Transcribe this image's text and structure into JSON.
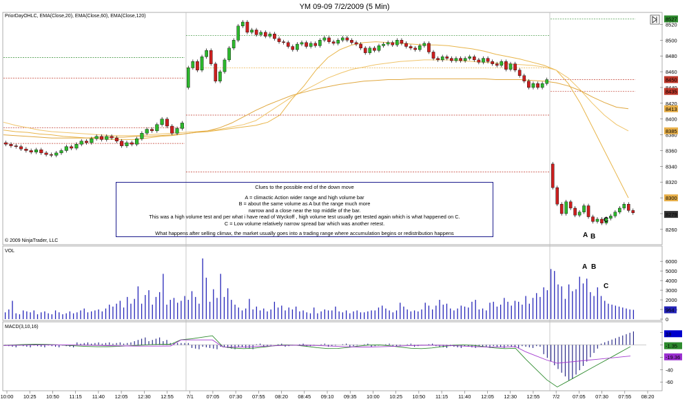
{
  "chart_data": [
    {
      "type": "candlestick",
      "title": "YM 09-09  7/2/2009 (5 Min)",
      "legend": "PriorDayOHLC, EMA(Close,20), EMA(Close,60), EMA(Close,120)",
      "copyright": "© 2009 NinjaTrader, LLC",
      "ylim": [
        8245,
        8530
      ],
      "y_ticks": [
        8260,
        8280,
        8300,
        8320,
        8340,
        8360,
        8380,
        8400,
        8420,
        8440,
        8460,
        8480,
        8500,
        8520
      ],
      "x_tick_labels": [
        "10:00",
        "10:25",
        "10:50",
        "11:15",
        "11:40",
        "12:05",
        "12:30",
        "12:55",
        "7/1",
        "07:05",
        "07:30",
        "07:55",
        "08:20",
        "08:45",
        "09:10",
        "09:35",
        "10:00",
        "10:25",
        "10:50",
        "11:15",
        "11:40",
        "12:05",
        "12:30",
        "12:55",
        "7/2",
        "07:05",
        "07:30",
        "07:55",
        "08:20"
      ],
      "price_badges": [
        {
          "label": "8527",
          "value": 8527,
          "color": "#2e8b2e"
        },
        {
          "label": "8450",
          "value": 8450,
          "color": "#c0392b"
        },
        {
          "label": "8435",
          "value": 8435,
          "color": "#c0392b"
        },
        {
          "label": "8413",
          "value": 8413,
          "color": "#e8b04a"
        },
        {
          "label": "8385",
          "value": 8385,
          "color": "#e8b04a"
        },
        {
          "label": "8300",
          "value": 8300,
          "color": "#e8b04a"
        },
        {
          "label": "8279",
          "value": 8279,
          "color": "#333333"
        }
      ],
      "annotations": [
        "A",
        "B",
        "C"
      ],
      "candles_day1": [
        [
          8370,
          8368
        ],
        [
          8368,
          8366
        ],
        [
          8366,
          8365
        ],
        [
          8365,
          8362
        ],
        [
          8362,
          8360
        ],
        [
          8360,
          8358
        ],
        [
          8358,
          8361
        ],
        [
          8361,
          8357
        ],
        [
          8357,
          8355
        ],
        [
          8355,
          8354
        ],
        [
          8354,
          8357
        ],
        [
          8357,
          8360
        ],
        [
          8360,
          8365
        ],
        [
          8365,
          8363
        ],
        [
          8363,
          8368
        ],
        [
          8368,
          8372
        ],
        [
          8372,
          8370
        ],
        [
          8370,
          8375
        ],
        [
          8375,
          8378
        ],
        [
          8378,
          8374
        ],
        [
          8374,
          8378
        ],
        [
          8378,
          8376
        ],
        [
          8376,
          8372
        ],
        [
          8372,
          8366
        ],
        [
          8366,
          8370
        ],
        [
          8370,
          8368
        ],
        [
          8368,
          8375
        ],
        [
          8375,
          8382
        ],
        [
          8382,
          8387
        ],
        [
          8387,
          8385
        ],
        [
          8385,
          8393
        ],
        [
          8393,
          8400
        ],
        [
          8400,
          8391
        ],
        [
          8391,
          8382
        ],
        [
          8382,
          8388
        ],
        [
          8388,
          8395
        ]
      ],
      "candles_day2": [
        [
          8440,
          8465
        ],
        [
          8465,
          8473
        ],
        [
          8473,
          8462
        ],
        [
          8462,
          8479
        ],
        [
          8479,
          8487
        ],
        [
          8487,
          8470
        ],
        [
          8470,
          8448
        ],
        [
          8448,
          8460
        ],
        [
          8460,
          8475
        ],
        [
          8475,
          8490
        ],
        [
          8490,
          8500
        ],
        [
          8500,
          8518
        ],
        [
          8518,
          8523
        ],
        [
          8523,
          8510
        ],
        [
          8510,
          8513
        ],
        [
          8513,
          8507
        ],
        [
          8507,
          8510
        ],
        [
          8510,
          8505
        ],
        [
          8505,
          8508
        ],
        [
          8508,
          8502
        ],
        [
          8502,
          8498
        ],
        [
          8498,
          8497
        ],
        [
          8497,
          8492
        ],
        [
          8492,
          8488
        ],
        [
          8488,
          8495
        ],
        [
          8495,
          8497
        ],
        [
          8497,
          8492
        ],
        [
          8492,
          8496
        ],
        [
          8496,
          8493
        ],
        [
          8493,
          8500
        ],
        [
          8500,
          8503
        ],
        [
          8503,
          8498
        ],
        [
          8498,
          8496
        ],
        [
          8496,
          8500
        ],
        [
          8500,
          8503
        ],
        [
          8503,
          8500
        ],
        [
          8500,
          8497
        ],
        [
          8497,
          8495
        ],
        [
          8495,
          8490
        ],
        [
          8490,
          8484
        ],
        [
          8484,
          8490
        ],
        [
          8490,
          8487
        ],
        [
          8487,
          8493
        ],
        [
          8493,
          8495
        ],
        [
          8495,
          8497
        ],
        [
          8497,
          8494
        ],
        [
          8494,
          8500
        ],
        [
          8500,
          8496
        ],
        [
          8496,
          8492
        ],
        [
          8492,
          8490
        ],
        [
          8490,
          8488
        ],
        [
          8488,
          8493
        ],
        [
          8493,
          8496
        ],
        [
          8496,
          8485
        ],
        [
          8485,
          8477
        ],
        [
          8477,
          8475
        ],
        [
          8475,
          8479
        ],
        [
          8479,
          8477
        ],
        [
          8477,
          8474
        ],
        [
          8474,
          8477
        ],
        [
          8477,
          8474
        ],
        [
          8474,
          8477
        ],
        [
          8477,
          8479
        ],
        [
          8479,
          8475
        ],
        [
          8475,
          8472
        ],
        [
          8472,
          8477
        ],
        [
          8477,
          8473
        ],
        [
          8473,
          8470
        ],
        [
          8470,
          8468
        ],
        [
          8468,
          8473
        ],
        [
          8473,
          8463
        ],
        [
          8463,
          8470
        ],
        [
          8470,
          8462
        ],
        [
          8462,
          8455
        ],
        [
          8455,
          8448
        ],
        [
          8448,
          8440
        ],
        [
          8440,
          8445
        ],
        [
          8445,
          8440
        ],
        [
          8440,
          8445
        ],
        [
          8445,
          8450
        ]
      ],
      "candles_day3": [
        [
          8343,
          8313
        ],
        [
          8313,
          8292
        ],
        [
          8292,
          8280
        ],
        [
          8280,
          8295
        ],
        [
          8295,
          8287
        ],
        [
          8287,
          8278
        ],
        [
          8278,
          8282
        ],
        [
          8282,
          8290
        ],
        [
          8290,
          8276
        ],
        [
          8276,
          8270
        ],
        [
          8270,
          8273
        ],
        [
          8273,
          8268
        ],
        [
          8268,
          8274
        ],
        [
          8274,
          8277
        ],
        [
          8277,
          8282
        ],
        [
          8282,
          8287
        ],
        [
          8287,
          8292
        ],
        [
          8292,
          8284
        ],
        [
          8284,
          8281
        ]
      ],
      "ema_20": [
        8386,
        8384,
        8383,
        8381,
        8380,
        8378,
        8377,
        8376,
        8375,
        8374,
        8374,
        8374,
        8376,
        8378,
        8379,
        8381,
        8383,
        8384,
        8386,
        8388,
        8390,
        8392,
        8396,
        8405,
        8425,
        8442,
        8462,
        8478,
        8488,
        8494,
        8497,
        8498,
        8497,
        8496,
        8495,
        8494,
        8494,
        8493,
        8491,
        8489,
        8486,
        8482,
        8479,
        8476,
        8472,
        8468,
        8462,
        8445,
        8420,
        8390,
        8360,
        8330,
        8300
      ],
      "ema_60": [
        8396,
        8392,
        8389,
        8386,
        8384,
        8383,
        8382,
        8381,
        8380,
        8379,
        8379,
        8379,
        8380,
        8381,
        8382,
        8383,
        8384,
        8385,
        8387,
        8390,
        8393,
        8398,
        8408,
        8418,
        8428,
        8436,
        8444,
        8452,
        8458,
        8463,
        8466,
        8469,
        8471,
        8473,
        8474,
        8475,
        8475,
        8475,
        8474,
        8473,
        8472,
        8471,
        8470,
        8469,
        8468,
        8466,
        8462,
        8452,
        8437,
        8420,
        8405,
        8393,
        8385
      ],
      "ema_120": [
        8380,
        8379,
        8378,
        8377,
        8376,
        8376,
        8376,
        8376,
        8377,
        8377,
        8377,
        8378,
        8378,
        8379,
        8380,
        8381,
        8383,
        8385,
        8389,
        8395,
        8403,
        8411,
        8418,
        8424,
        8430,
        8434,
        8438,
        8441,
        8444,
        8446,
        8448,
        8449,
        8450,
        8450,
        8451,
        8451,
        8451,
        8451,
        8451,
        8451,
        8451,
        8450,
        8450,
        8450,
        8449,
        8448,
        8446,
        8442,
        8436,
        8428,
        8421,
        8415,
        8413
      ]
    },
    {
      "type": "bar",
      "title": "VOL",
      "ylim": [
        0,
        6800
      ],
      "y_ticks": [
        0,
        1000,
        2000,
        3000,
        4000,
        5000,
        6000
      ],
      "badge": {
        "label": "964",
        "value": 964
      },
      "annotations": [
        "A",
        "B",
        "C"
      ],
      "values": [
        700,
        1000,
        1900,
        600,
        500,
        900,
        800,
        700,
        900,
        500,
        700,
        800,
        600,
        500,
        900,
        700,
        500,
        600,
        800,
        600,
        700,
        900,
        1100,
        700,
        800,
        900,
        1000,
        800,
        1100,
        1500,
        1300,
        1600,
        1900,
        1200,
        2300,
        1600,
        2100,
        3400,
        1600,
        2500,
        3000,
        1500,
        2300,
        2800,
        4700,
        1500,
        2000,
        2200,
        1700,
        1900,
        2400,
        2000,
        2900,
        2300,
        1600,
        6300,
        4300,
        1800,
        3100,
        2200,
        4700,
        2300,
        3200,
        2000,
        1500,
        1200,
        900,
        1100,
        2100,
        1000,
        1300,
        900,
        1100,
        800,
        1000,
        1800,
        1200,
        1400,
        900,
        1200,
        1000,
        1300,
        800,
        900,
        700,
        600,
        1200,
        600,
        800,
        1000,
        900,
        900,
        1300,
        800,
        700,
        900,
        600,
        800,
        900,
        700,
        700,
        800,
        900,
        900,
        1200,
        1400,
        1100,
        900,
        700,
        900,
        1700,
        1300,
        1000,
        800,
        900,
        800,
        1000,
        1700,
        1400,
        1000,
        1400,
        2000,
        1500,
        1600,
        1100,
        900,
        1100,
        1400,
        1300,
        1200,
        1800,
        2000,
        1000,
        1100,
        900,
        1700,
        1800,
        1300,
        1500,
        2200,
        1800,
        1400,
        1900,
        1800,
        1500,
        2400,
        1600,
        2200,
        2700,
        2300,
        3300,
        3000,
        5200,
        5000,
        3600,
        3400,
        2100,
        3600,
        2900,
        3100,
        4400,
        3700,
        4200,
        2800,
        2400,
        3300,
        2400,
        1900,
        1600,
        1500,
        1400,
        1300,
        1200,
        1100,
        1000,
        964
      ]
    },
    {
      "type": "line_bar",
      "title": "MACD(3,10,16)",
      "ylim": [
        -72,
        25
      ],
      "y_ticks": [
        -60,
        -40,
        -20,
        0,
        20
      ],
      "badges": [
        {
          "label": "18",
          "value": 18,
          "color": "#0000cc"
        },
        {
          "label": "-1.35",
          "value": -1.35,
          "color": "#2e8b2e"
        },
        {
          "label": "-19.36",
          "value": -19.36,
          "color": "#9b30d0"
        }
      ]
    }
  ]
}
